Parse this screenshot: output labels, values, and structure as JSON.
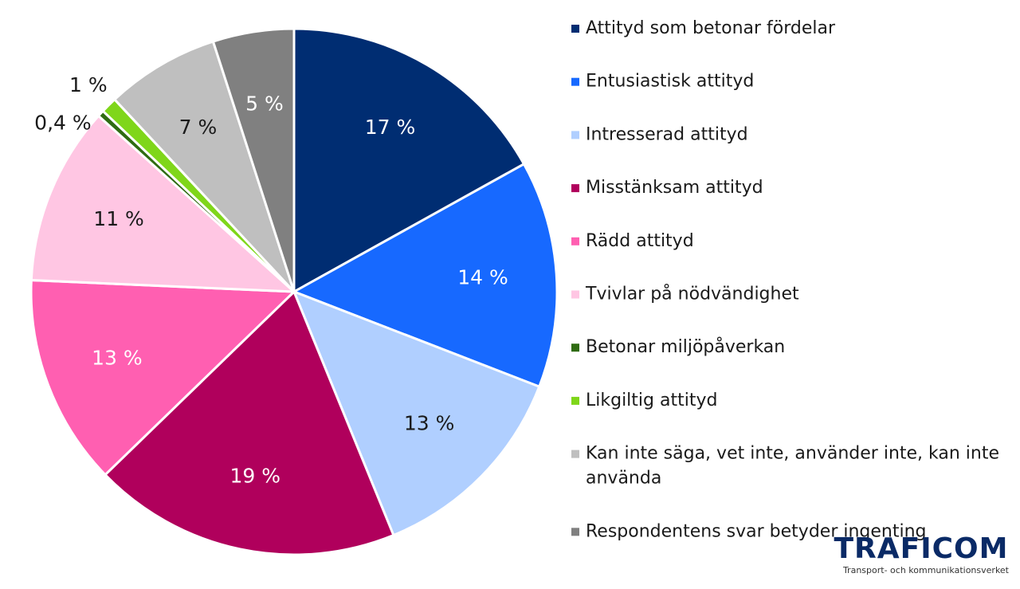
{
  "chart_data": {
    "type": "pie",
    "categories": [
      "Attityd som betonar fördelar",
      "Entusiastisk attityd",
      "Intresserad attityd",
      "Misstänksam attityd",
      "Rädd attityd",
      "Tvivlar på nödvändighet",
      "Betonar miljöpåverkan",
      "Likgiltig attityd",
      "Kan inte säga, vet inte, använder inte, kan inte använda",
      "Respondentens svar betyder ingenting"
    ],
    "values": [
      17,
      14,
      13,
      19,
      13,
      11,
      0.4,
      1,
      7,
      5
    ],
    "value_labels": [
      "17 %",
      "14 %",
      "13 %",
      "19 %",
      "13 %",
      "11 %",
      "0,4 %",
      "1 %",
      "7 %",
      "5 %"
    ],
    "colors": [
      "#002d72",
      "#1769ff",
      "#b0cfff",
      "#b0005c",
      "#ff5fb1",
      "#ffc6e3",
      "#2f6b12",
      "#7fd61a",
      "#bfbfbf",
      "#808080"
    ],
    "legend": "right"
  },
  "logo": {
    "name": "TRAFICOM",
    "tagline": "Transport- och kommunikationsverket"
  }
}
